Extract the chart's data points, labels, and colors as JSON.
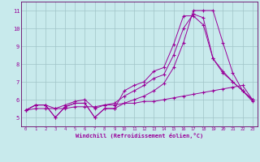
{
  "xlabel": "Windchill (Refroidissement éolien,°C)",
  "background_color": "#c8eaec",
  "grid_color": "#a0c4c8",
  "line_color": "#990099",
  "spine_color": "#660066",
  "xlim_min": -0.5,
  "xlim_max": 23.5,
  "ylim_min": 4.5,
  "ylim_max": 11.5,
  "xticks": [
    0,
    1,
    2,
    3,
    4,
    5,
    6,
    7,
    8,
    9,
    10,
    11,
    12,
    13,
    14,
    15,
    16,
    17,
    18,
    19,
    20,
    21,
    22,
    23
  ],
  "yticks": [
    5,
    6,
    7,
    8,
    9,
    10,
    11
  ],
  "series": [
    [
      5.4,
      5.7,
      5.7,
      5.0,
      5.6,
      5.8,
      5.8,
      5.0,
      5.5,
      5.5,
      5.8,
      6.0,
      6.2,
      6.5,
      6.9,
      7.8,
      9.2,
      11.0,
      11.0,
      11.0,
      9.2,
      7.5,
      6.5,
      5.9
    ],
    [
      5.4,
      5.7,
      5.7,
      5.5,
      5.7,
      5.9,
      6.0,
      5.5,
      5.7,
      5.8,
      6.2,
      6.5,
      6.8,
      7.2,
      7.4,
      8.5,
      10.0,
      10.8,
      10.6,
      8.3,
      7.5,
      7.0,
      6.5,
      6.0
    ],
    [
      5.4,
      5.7,
      5.7,
      5.0,
      5.6,
      5.8,
      5.8,
      5.0,
      5.5,
      5.5,
      6.5,
      6.8,
      7.0,
      7.6,
      7.8,
      9.1,
      10.7,
      10.7,
      10.2,
      8.3,
      7.6,
      7.0,
      6.5,
      6.0
    ],
    [
      5.4,
      5.5,
      5.5,
      5.5,
      5.5,
      5.6,
      5.6,
      5.6,
      5.7,
      5.7,
      5.8,
      5.8,
      5.9,
      5.9,
      6.0,
      6.1,
      6.2,
      6.3,
      6.4,
      6.5,
      6.6,
      6.7,
      6.8,
      6.0
    ]
  ]
}
